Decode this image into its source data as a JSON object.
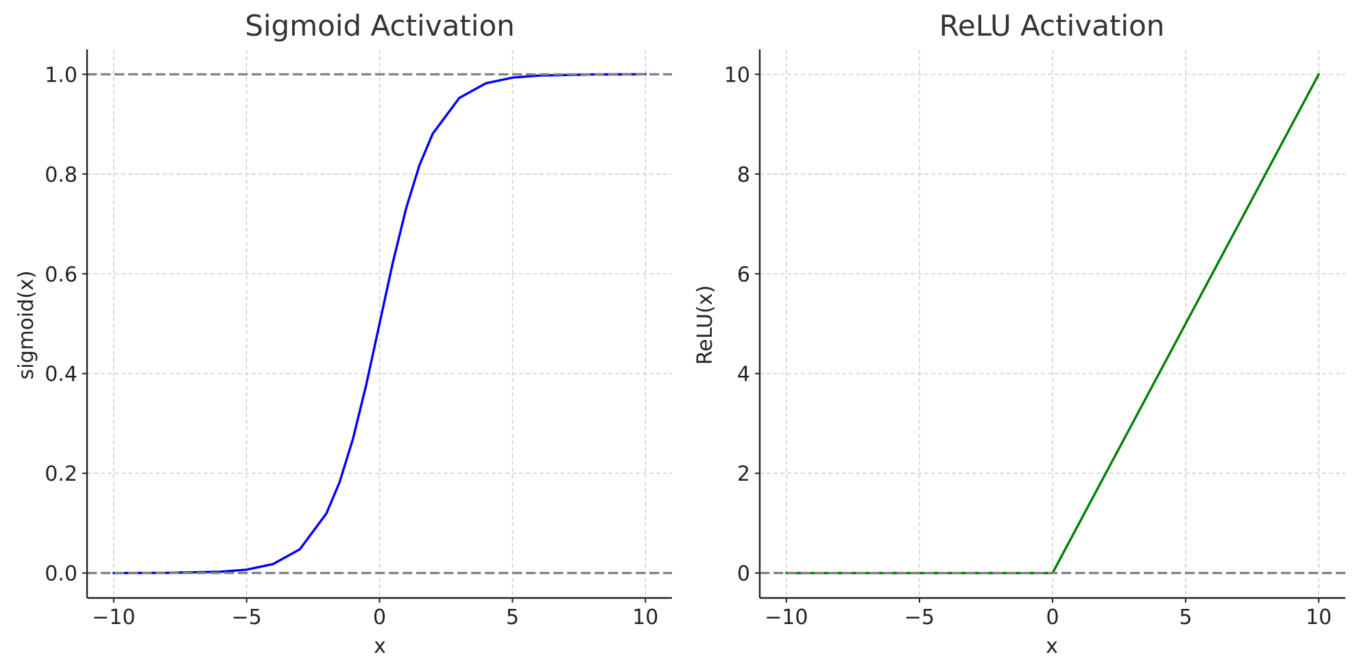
{
  "colors": {
    "sigmoid_line": "#0000ff",
    "relu_line": "#008000",
    "reference_lines": "#808080",
    "grid": "#c8c8c8",
    "title_text": "#333333"
  },
  "chart_data": [
    {
      "id": "sigmoid",
      "type": "line",
      "title": "Sigmoid Activation",
      "xlabel": "x",
      "ylabel": "sigmoid(x)",
      "xlim": [
        -11,
        11
      ],
      "ylim": [
        -0.05,
        1.05
      ],
      "xticks": [
        -10,
        -5,
        0,
        5,
        10
      ],
      "xtick_labels": [
        "−10",
        "−5",
        "0",
        "5",
        "10"
      ],
      "yticks": [
        0.0,
        0.2,
        0.4,
        0.6,
        0.8,
        1.0
      ],
      "ytick_labels": [
        "0.0",
        "0.2",
        "0.4",
        "0.6",
        "0.8",
        "1.0"
      ],
      "grid": true,
      "reference_lines_y": [
        0.0,
        1.0
      ],
      "series": [
        {
          "color": "#0000ff",
          "x": [
            -10,
            -8,
            -6,
            -5,
            -4,
            -3,
            -2,
            -1.5,
            -1,
            -0.5,
            0,
            0.5,
            1,
            1.5,
            2,
            3,
            4,
            5,
            6,
            8,
            10
          ],
          "y": [
            0.0,
            0.0003,
            0.0025,
            0.0067,
            0.018,
            0.0474,
            0.1192,
            0.1824,
            0.2689,
            0.3775,
            0.5,
            0.6225,
            0.7311,
            0.8176,
            0.8808,
            0.9526,
            0.982,
            0.9933,
            0.9975,
            0.9997,
            1.0
          ]
        }
      ]
    },
    {
      "id": "relu",
      "type": "line",
      "title": "ReLU Activation",
      "xlabel": "x",
      "ylabel": "ReLU(x)",
      "xlim": [
        -11,
        11
      ],
      "ylim": [
        -0.5,
        10.5
      ],
      "xticks": [
        -10,
        -5,
        0,
        5,
        10
      ],
      "xtick_labels": [
        "−10",
        "−5",
        "0",
        "5",
        "10"
      ],
      "yticks": [
        0,
        2,
        4,
        6,
        8,
        10
      ],
      "ytick_labels": [
        "0",
        "2",
        "4",
        "6",
        "8",
        "10"
      ],
      "grid": true,
      "reference_lines_y": [
        0
      ],
      "series": [
        {
          "color": "#008000",
          "x": [
            -10,
            -5,
            0,
            5,
            10
          ],
          "y": [
            0,
            0,
            0,
            5,
            10
          ]
        }
      ]
    }
  ]
}
